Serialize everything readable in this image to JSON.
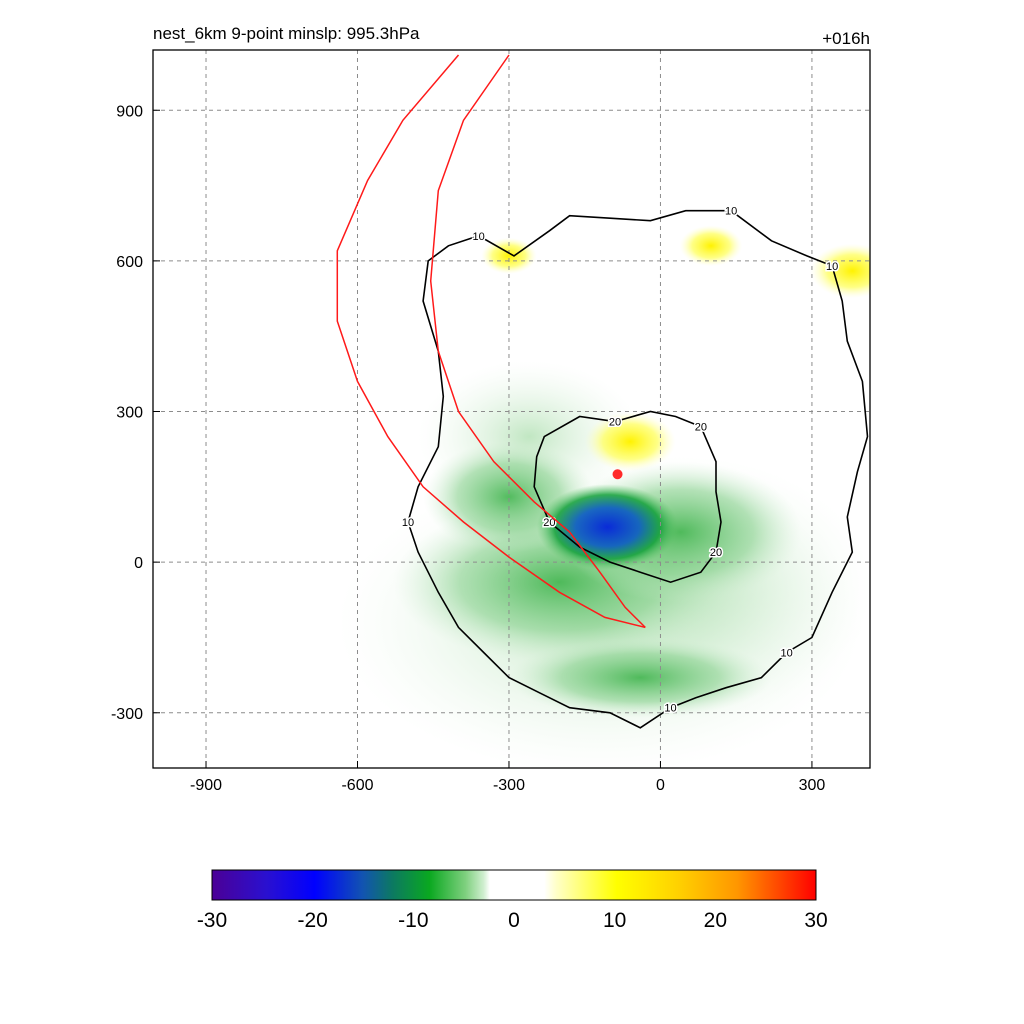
{
  "chart_data": {
    "type": "heatmap",
    "title": "nest_6km  9-point minslp: 995.3hPa",
    "time_label": "+016h",
    "x_ticks": [
      -900,
      -600,
      -300,
      0,
      300
    ],
    "y_ticks": [
      -300,
      0,
      300,
      600,
      900
    ],
    "xlim": [
      -1005,
      415
    ],
    "ylim": [
      -410,
      1020
    ],
    "grid": true,
    "colorbar": {
      "min": -30,
      "max": 30,
      "ticks": [
        -30,
        -20,
        -10,
        0,
        10,
        20,
        30
      ],
      "position": "bottom"
    },
    "contour_labels": [
      "10",
      "20"
    ],
    "contour_levels": [
      10,
      20
    ],
    "center_marker": {
      "x": -85,
      "y": 175,
      "color": "#ff2a2a"
    },
    "anomalies": [
      {
        "sign": "negative",
        "x": -105,
        "y": 70,
        "value": -22
      },
      {
        "sign": "positive",
        "x": -60,
        "y": 240,
        "value": 10
      },
      {
        "sign": "positive",
        "x": 380,
        "y": 580,
        "value": 9
      },
      {
        "sign": "positive",
        "x": 100,
        "y": 630,
        "value": 6
      },
      {
        "sign": "positive",
        "x": -300,
        "y": 610,
        "value": 5
      }
    ],
    "contour_10": [
      [
        -460,
        600
      ],
      [
        -420,
        630
      ],
      [
        -360,
        650
      ],
      [
        -290,
        610
      ],
      [
        -220,
        660
      ],
      [
        -180,
        690
      ],
      [
        -100,
        685
      ],
      [
        -20,
        680
      ],
      [
        50,
        700
      ],
      [
        140,
        700
      ],
      [
        220,
        640
      ],
      [
        290,
        610
      ],
      [
        340,
        590
      ],
      [
        360,
        520
      ],
      [
        370,
        440
      ],
      [
        400,
        360
      ],
      [
        410,
        250
      ],
      [
        390,
        180
      ],
      [
        370,
        90
      ],
      [
        380,
        20
      ],
      [
        340,
        -60
      ],
      [
        300,
        -150
      ],
      [
        250,
        -180
      ],
      [
        200,
        -230
      ],
      [
        130,
        -250
      ],
      [
        70,
        -270
      ],
      [
        20,
        -290
      ],
      [
        -40,
        -330
      ],
      [
        -100,
        -300
      ],
      [
        -180,
        -290
      ],
      [
        -240,
        -260
      ],
      [
        -300,
        -230
      ],
      [
        -350,
        -180
      ],
      [
        -400,
        -130
      ],
      [
        -440,
        -60
      ],
      [
        -480,
        20
      ],
      [
        -500,
        80
      ],
      [
        -480,
        150
      ],
      [
        -440,
        230
      ],
      [
        -430,
        330
      ],
      [
        -440,
        420
      ],
      [
        -470,
        520
      ],
      [
        -460,
        600
      ]
    ],
    "contour_20": [
      [
        -230,
        250
      ],
      [
        -160,
        290
      ],
      [
        -90,
        280
      ],
      [
        -20,
        300
      ],
      [
        30,
        290
      ],
      [
        80,
        270
      ],
      [
        110,
        200
      ],
      [
        110,
        140
      ],
      [
        120,
        80
      ],
      [
        110,
        20
      ],
      [
        80,
        -20
      ],
      [
        20,
        -40
      ],
      [
        -40,
        -20
      ],
      [
        -100,
        0
      ],
      [
        -160,
        30
      ],
      [
        -220,
        80
      ],
      [
        -250,
        150
      ],
      [
        -245,
        210
      ],
      [
        -230,
        250
      ]
    ],
    "track_inner": [
      [
        -300,
        1010
      ],
      [
        -390,
        880
      ],
      [
        -440,
        740
      ],
      [
        -455,
        560
      ],
      [
        -440,
        420
      ],
      [
        -400,
        300
      ],
      [
        -330,
        200
      ],
      [
        -250,
        120
      ],
      [
        -180,
        60
      ],
      [
        -120,
        -20
      ],
      [
        -70,
        -90
      ],
      [
        -30,
        -130
      ]
    ],
    "track_outer": [
      [
        -400,
        1010
      ],
      [
        -510,
        880
      ],
      [
        -580,
        760
      ],
      [
        -640,
        620
      ],
      [
        -640,
        480
      ],
      [
        -600,
        360
      ],
      [
        -540,
        250
      ],
      [
        -470,
        150
      ],
      [
        -390,
        80
      ],
      [
        -300,
        10
      ],
      [
        -200,
        -60
      ],
      [
        -110,
        -110
      ],
      [
        -30,
        -130
      ]
    ]
  }
}
